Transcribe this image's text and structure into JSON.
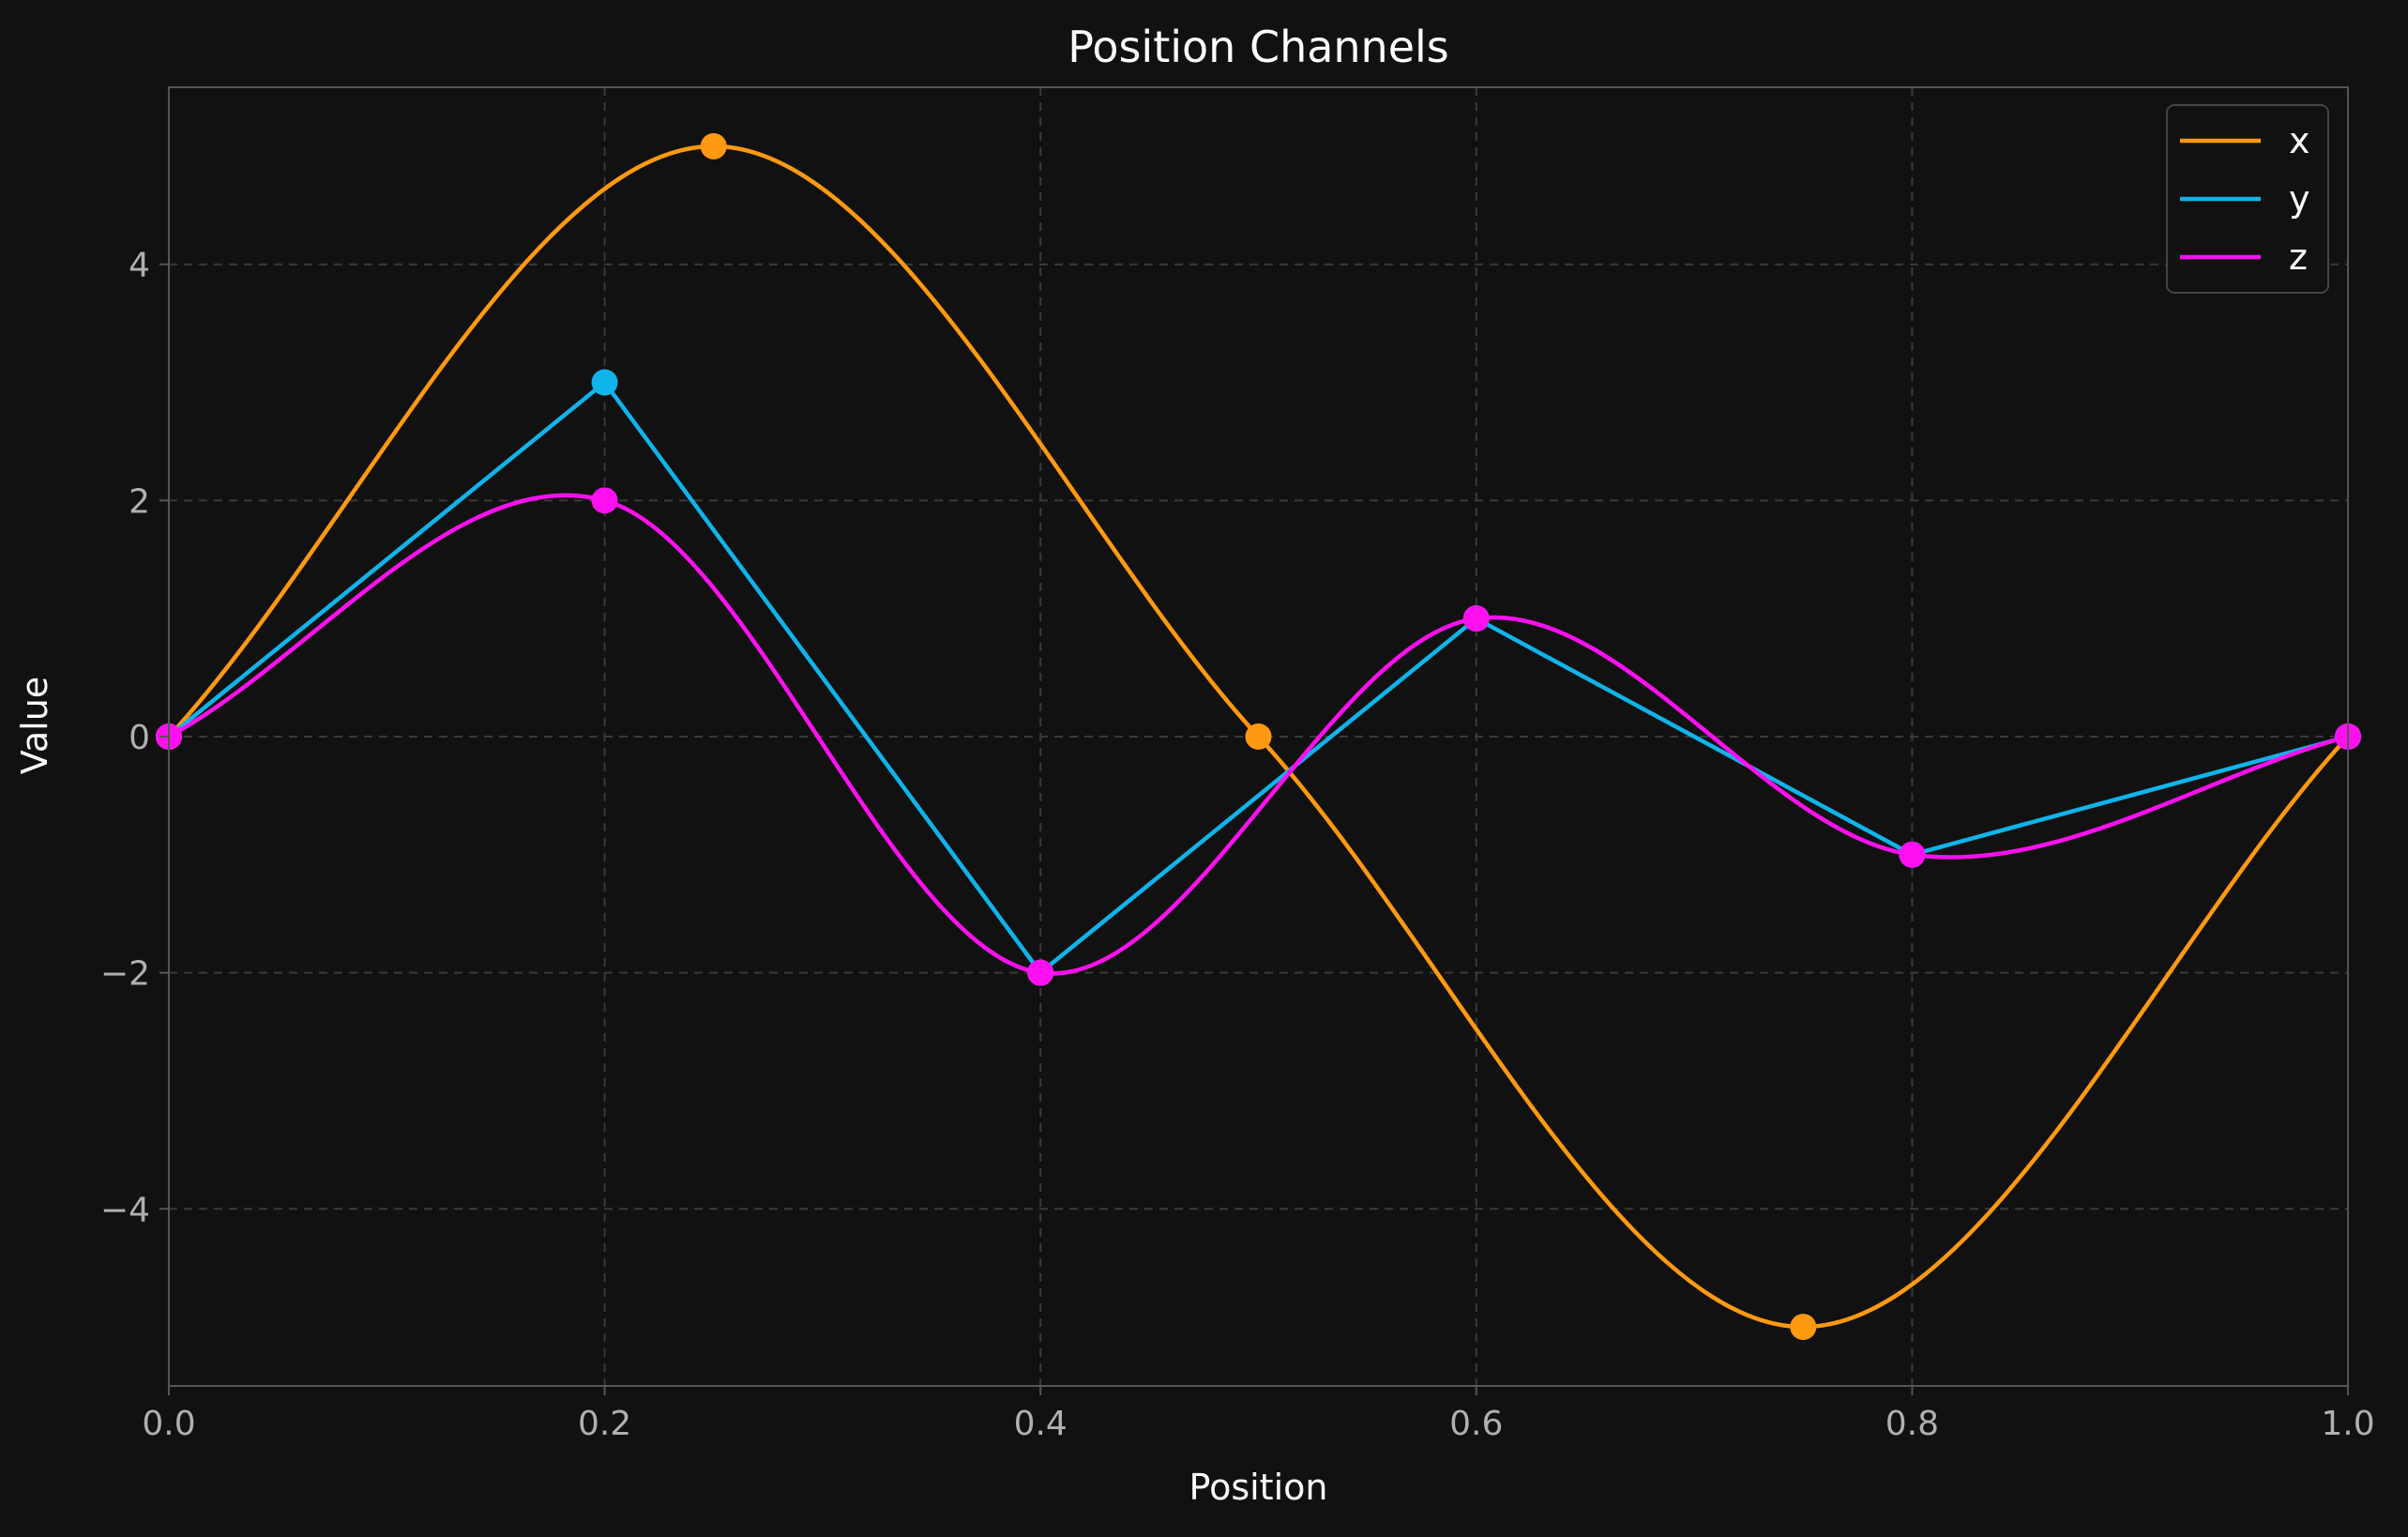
{
  "chart_data": {
    "type": "line",
    "title": "Position Channels",
    "xlabel": "Position",
    "ylabel": "Value",
    "xlim": [
      0.0,
      1.0
    ],
    "ylim": [
      -5.5,
      5.5
    ],
    "xticks": [
      0.0,
      0.2,
      0.4,
      0.6,
      0.8,
      1.0
    ],
    "xtick_labels": [
      "0.0",
      "0.2",
      "0.4",
      "0.6",
      "0.8",
      "1.0"
    ],
    "yticks": [
      -4,
      -2,
      0,
      2,
      4
    ],
    "ytick_labels": [
      "−4",
      "−2",
      "0",
      "2",
      "4"
    ],
    "grid": true,
    "legend_position": "top-right",
    "series": [
      {
        "name": "x",
        "color": "#ff9910",
        "curve": "smooth",
        "points": [
          [
            0.0,
            0
          ],
          [
            0.25,
            5
          ],
          [
            0.5,
            0
          ],
          [
            0.75,
            -5
          ],
          [
            1.0,
            0
          ]
        ]
      },
      {
        "name": "y",
        "color": "#10b3ea",
        "curve": "linear",
        "points": [
          [
            0.0,
            0
          ],
          [
            0.2,
            3
          ],
          [
            0.4,
            -2
          ],
          [
            0.6,
            1
          ],
          [
            0.8,
            -1
          ],
          [
            1.0,
            0
          ]
        ]
      },
      {
        "name": "z",
        "color": "#ff10f0",
        "curve": "smooth",
        "points": [
          [
            0.0,
            0
          ],
          [
            0.2,
            2
          ],
          [
            0.4,
            -2
          ],
          [
            0.6,
            1
          ],
          [
            0.8,
            -1
          ],
          [
            1.0,
            0
          ]
        ]
      }
    ]
  },
  "colors": {
    "background": "#111111",
    "grid": "#3a3a3a",
    "spine": "#555555"
  }
}
